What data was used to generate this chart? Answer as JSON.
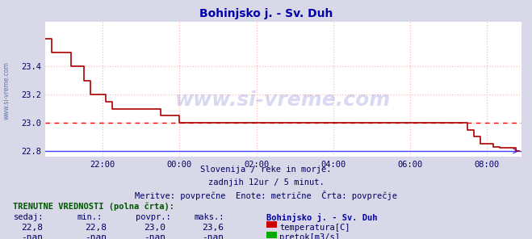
{
  "title": "Bohinjsko j. - Sv. Duh",
  "title_color": "#0000aa",
  "bg_color": "#d8d8e8",
  "plot_bg_color": "#ffffff",
  "ylim": [
    22.76,
    23.72
  ],
  "yticks": [
    22.8,
    23.0,
    23.2,
    23.4
  ],
  "tick_color": "#000066",
  "xtick_labels": [
    "22:00",
    "00:00",
    "02:00",
    "04:00",
    "06:00",
    "08:00"
  ],
  "xtick_positions_h": [
    22.0,
    24.0,
    26.0,
    28.0,
    30.0,
    32.0
  ],
  "x_min": 20.5,
  "x_max": 32.9,
  "avg_line_y": 23.0,
  "avg_line_color": "#ff0000",
  "grid_color": "#ffbbbb",
  "grid_linestyle": ":",
  "temp_line_color": "#aa0000",
  "flow_line_color": "#4444ff",
  "watermark_text": "www.si-vreme.com",
  "watermark_color": "#0000aa",
  "watermark_alpha": 0.15,
  "sub_text1": "Slovenija / reke in morje.",
  "sub_text2": "zadnjih 12ur / 5 minut.",
  "sub_text3": "Meritve: povprečne  Enote: metrične  Črta: povprečje",
  "label_current": "TRENUTNE VREDNOSTI (polna črta):",
  "col_headers": [
    "sedaj:",
    "min.:",
    "povpr.:",
    "maks.:"
  ],
  "col_station": "Bohinjsko j. - Sv. Duh",
  "vals_temp": [
    "22,8",
    "22,8",
    "23,0",
    "23,6"
  ],
  "vals_flow": [
    "-nan",
    "-nan",
    "-nan",
    "-nan"
  ],
  "label_temp": "temperatura[C]",
  "label_flow": "pretok[m3/s]",
  "temp_rect_color": "#cc0000",
  "flow_rect_color": "#00aa00",
  "temp_data_h": [
    20.5,
    20.58,
    20.67,
    20.75,
    20.83,
    20.92,
    21.0,
    21.08,
    21.17,
    21.25,
    21.33,
    21.5,
    21.67,
    21.75,
    21.83,
    21.92,
    22.0,
    22.08,
    22.25,
    22.5,
    22.67,
    23.0,
    23.17,
    23.33,
    23.5,
    23.67,
    24.0,
    24.25,
    24.5,
    25.0,
    25.5,
    26.0,
    26.5,
    27.0,
    27.5,
    28.0,
    28.5,
    29.0,
    29.5,
    30.0,
    30.25,
    30.5,
    30.75,
    31.0,
    31.17,
    31.33,
    31.5,
    31.67,
    31.83,
    32.0,
    32.17,
    32.33,
    32.5,
    32.75,
    32.85
  ],
  "temp_data_v": [
    23.6,
    23.6,
    23.5,
    23.5,
    23.5,
    23.5,
    23.5,
    23.5,
    23.4,
    23.4,
    23.4,
    23.3,
    23.2,
    23.2,
    23.2,
    23.2,
    23.2,
    23.15,
    23.1,
    23.1,
    23.1,
    23.1,
    23.1,
    23.1,
    23.05,
    23.05,
    23.0,
    23.0,
    23.0,
    23.0,
    23.0,
    23.0,
    23.0,
    23.0,
    23.0,
    23.0,
    23.0,
    23.0,
    23.0,
    23.0,
    23.0,
    23.0,
    23.0,
    23.0,
    23.0,
    23.0,
    22.95,
    22.9,
    22.85,
    22.85,
    22.83,
    22.82,
    22.82,
    22.8,
    22.8
  ]
}
